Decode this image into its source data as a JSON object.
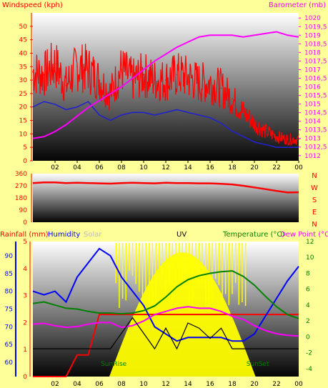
{
  "colors": {
    "background": "#ffff99",
    "wind": "#ff0000",
    "gust_bg": "#ff0000",
    "windavg": "#2222cc",
    "baro": "#ff00ff",
    "direction": "#ff0000",
    "rain": "#ff0000",
    "humidity": "#0000ff",
    "solar": "#ffff00",
    "uv": "#000000",
    "temperature": "#008000",
    "dewpoint": "#ff00ff"
  },
  "chart_data": [
    {
      "type": "line",
      "panel": "wind-baro",
      "title": "",
      "left_label": "Windspeed (kph)",
      "right_label": "Barometer (mb)",
      "header_center": "",
      "x_ticks": [
        "02",
        "04",
        "06",
        "08",
        "10",
        "12",
        "14",
        "16",
        "18",
        "20",
        "22",
        "00"
      ],
      "left_ticks": [
        "0",
        "5",
        "10",
        "15",
        "20",
        "25",
        "30",
        "35",
        "40",
        "45",
        "50"
      ],
      "right_ticks": [
        "1012",
        "1012,5",
        "1013",
        "1013,5",
        "1014",
        "1014,5",
        "1015",
        "1015,5",
        "1016",
        "1016,5",
        "1017",
        "1017,5",
        "1018",
        "1018,5",
        "1019",
        "1019,5",
        "1020"
      ],
      "ylim_left": [
        0,
        55
      ],
      "ylim_right": [
        1011.7,
        1020.3
      ],
      "x_hours": [
        0,
        1,
        2,
        3,
        4,
        5,
        6,
        7,
        8,
        9,
        10,
        11,
        12,
        13,
        14,
        15,
        16,
        17,
        18,
        19,
        20,
        21,
        22,
        23,
        24
      ],
      "series": [
        {
          "name": "gust",
          "values": [
            33,
            32,
            36,
            28,
            35,
            34,
            30,
            25,
            34,
            30,
            32,
            30,
            30,
            32,
            31,
            29,
            29,
            27,
            23,
            18,
            14,
            11,
            9,
            8,
            8
          ]
        },
        {
          "name": "avg",
          "values": [
            20,
            22,
            21,
            19,
            20,
            22,
            17,
            15,
            17,
            18,
            18,
            17,
            18,
            19,
            18,
            17,
            16,
            14,
            11,
            9,
            7,
            6,
            5,
            5,
            5
          ]
        },
        {
          "name": "barometer",
          "values": [
            1013.0,
            1013.1,
            1013.4,
            1013.8,
            1014.3,
            1014.8,
            1015.2,
            1015.6,
            1016.0,
            1016.5,
            1017.0,
            1017.5,
            1017.9,
            1018.3,
            1018.6,
            1018.9,
            1019.0,
            1019.0,
            1019.0,
            1018.9,
            1019.0,
            1019.1,
            1019.2,
            1019.0,
            1018.9
          ]
        }
      ]
    },
    {
      "type": "line",
      "panel": "wind-direction",
      "left_ticks": [
        "0",
        "90",
        "180",
        "270",
        "360"
      ],
      "ylim": [
        0,
        360
      ],
      "compass": [
        "N",
        "W",
        "S",
        "E",
        "N"
      ],
      "series": [
        {
          "name": "direction",
          "values": [
            290,
            295,
            295,
            290,
            292,
            290,
            288,
            286,
            290,
            292,
            290,
            288,
            292,
            290,
            290,
            288,
            288,
            285,
            280,
            270,
            258,
            245,
            232,
            220,
            222
          ]
        }
      ]
    },
    {
      "type": "line",
      "panel": "rain-hum-solar-uv-temp",
      "headers": [
        "Rainfall (mm)",
        "Humidity",
        "Solar",
        "UV",
        "Temperature (°C)",
        "Dew Point (°C"
      ],
      "left_rain_ticks": [
        "0",
        "1",
        "2",
        "3",
        "4",
        "5"
      ],
      "left_hum_ticks": [
        "60",
        "65",
        "70",
        "75",
        "80",
        "85",
        "90"
      ],
      "right_ticks": [
        "-4",
        "-2",
        "0",
        "2",
        "4",
        "6",
        "8",
        "10",
        "12"
      ],
      "ylim_hum": [
        56,
        94
      ],
      "ylim_temp": [
        -5,
        12
      ],
      "annotations": [
        "SunRise",
        "SunSet"
      ],
      "series": [
        {
          "name": "humidity",
          "values": [
            80,
            79,
            80,
            77,
            84,
            88,
            92,
            90,
            84,
            80,
            76,
            70,
            68,
            66,
            67,
            67,
            67,
            67,
            66,
            66,
            68,
            73,
            78,
            83,
            87
          ]
        },
        {
          "name": "temperature",
          "values": [
            4.2,
            4.4,
            4.0,
            3.6,
            3.5,
            3.2,
            3.0,
            3.0,
            2.9,
            3.0,
            3.3,
            3.9,
            5.0,
            6.3,
            7.2,
            7.7,
            8.0,
            8.2,
            8.3,
            7.6,
            6.5,
            5.1,
            3.8,
            2.8,
            2.3
          ]
        },
        {
          "name": "dewpoint",
          "values": [
            1.6,
            1.7,
            1.4,
            1.2,
            1.3,
            1.6,
            1.8,
            1.8,
            1.2,
            1.4,
            2.0,
            2.8,
            3.2,
            3.6,
            3.8,
            3.6,
            3.6,
            3.2,
            2.6,
            2.2,
            1.4,
            0.8,
            0.4,
            0.2,
            0.1
          ]
        },
        {
          "name": "uv",
          "values": [
            0,
            0,
            0,
            0,
            0,
            0,
            0,
            0,
            1.5,
            3,
            1.5,
            0,
            2,
            0,
            2.5,
            2,
            1,
            2,
            0,
            0,
            0,
            0,
            0,
            0,
            0
          ]
        },
        {
          "name": "rain",
          "values": [
            0,
            0,
            0,
            0,
            0.8,
            0.8,
            2.3,
            2.3,
            2.3,
            2.3,
            2.3,
            2.3,
            2.3,
            2.3,
            2.3,
            2.3,
            2.3,
            2.3,
            2.3,
            2.3,
            2.3,
            2.3,
            2.3,
            2.3,
            2.3
          ]
        }
      ]
    }
  ]
}
